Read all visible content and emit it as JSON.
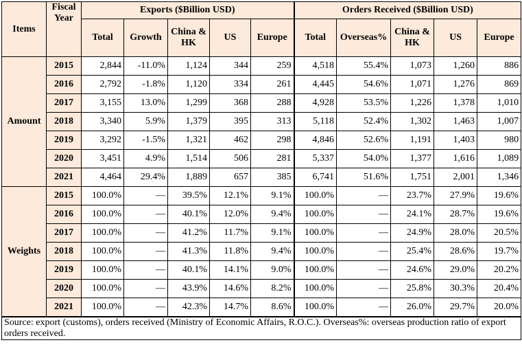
{
  "table": {
    "header": {
      "items": "Items",
      "fiscal_year": "Fiscal Year",
      "exports_group": "Exports ($Billion USD)",
      "orders_group": "Orders Received ($Billion USD)",
      "export_cols": [
        "Total",
        "Growth",
        "China & HK",
        "US",
        "Europe"
      ],
      "order_cols": [
        "Total",
        "Overseas%",
        "China & HK",
        "US",
        "Europe"
      ]
    },
    "sections": [
      {
        "label": "Amount",
        "rows": [
          {
            "year": "2015",
            "cells": [
              "2,844",
              "-11.0%",
              "1,124",
              "344",
              "259",
              "4,518",
              "55.4%",
              "1,073",
              "1,260",
              "886"
            ]
          },
          {
            "year": "2016",
            "cells": [
              "2,792",
              "-1.8%",
              "1,120",
              "334",
              "261",
              "4,445",
              "54.6%",
              "1,071",
              "1,276",
              "869"
            ]
          },
          {
            "year": "2017",
            "cells": [
              "3,155",
              "13.0%",
              "1,299",
              "368",
              "288",
              "4,928",
              "53.5%",
              "1,226",
              "1,378",
              "1,010"
            ]
          },
          {
            "year": "2018",
            "cells": [
              "3,340",
              "5.9%",
              "1,379",
              "395",
              "313",
              "5,118",
              "52.4%",
              "1,302",
              "1,463",
              "1,007"
            ]
          },
          {
            "year": "2019",
            "cells": [
              "3,292",
              "-1.5%",
              "1,321",
              "462",
              "298",
              "4,846",
              "52.6%",
              "1,191",
              "1,403",
              "980"
            ]
          },
          {
            "year": "2020",
            "cells": [
              "3,451",
              "4.9%",
              "1,514",
              "506",
              "281",
              "5,337",
              "54.0%",
              "1,377",
              "1,616",
              "1,089"
            ]
          },
          {
            "year": "2021",
            "cells": [
              "4,464",
              "29.4%",
              "1,889",
              "657",
              "385",
              "6,741",
              "51.6%",
              "1,751",
              "2,001",
              "1,346"
            ]
          }
        ]
      },
      {
        "label": "Weights",
        "rows": [
          {
            "year": "2015",
            "cells": [
              "100.0%",
              "—",
              "39.5%",
              "12.1%",
              "9.1%",
              "100.0%",
              "—",
              "23.7%",
              "27.9%",
              "19.6%"
            ]
          },
          {
            "year": "2016",
            "cells": [
              "100.0%",
              "—",
              "40.1%",
              "12.0%",
              "9.4%",
              "100.0%",
              "—",
              "24.1%",
              "28.7%",
              "19.6%"
            ]
          },
          {
            "year": "2017",
            "cells": [
              "100.0%",
              "—",
              "41.2%",
              "11.7%",
              "9.1%",
              "100.0%",
              "—",
              "24.9%",
              "28.0%",
              "20.5%"
            ]
          },
          {
            "year": "2018",
            "cells": [
              "100.0%",
              "—",
              "41.3%",
              "11.8%",
              "9.4%",
              "100.0%",
              "—",
              "25.4%",
              "28.6%",
              "19.7%"
            ]
          },
          {
            "year": "2019",
            "cells": [
              "100.0%",
              "—",
              "40.1%",
              "14.1%",
              "9.0%",
              "100.0%",
              "—",
              "24.6%",
              "29.0%",
              "20.2%"
            ]
          },
          {
            "year": "2020",
            "cells": [
              "100.0%",
              "—",
              "43.9%",
              "14.6%",
              "8.2%",
              "100.0%",
              "—",
              "25.8%",
              "30.3%",
              "20.4%"
            ]
          },
          {
            "year": "2021",
            "cells": [
              "100.0%",
              "—",
              "42.3%",
              "14.7%",
              "8.6%",
              "100.0%",
              "—",
              "26.0%",
              "29.7%",
              "20.0%"
            ]
          }
        ]
      }
    ],
    "source_note": "Source: export (customs), orders received (Ministry of Economic Affairs, R.O.C.). Overseas%: overseas production ratio of export orders received.",
    "colors": {
      "header_bg": "#fdeada",
      "border": "#000000"
    }
  }
}
